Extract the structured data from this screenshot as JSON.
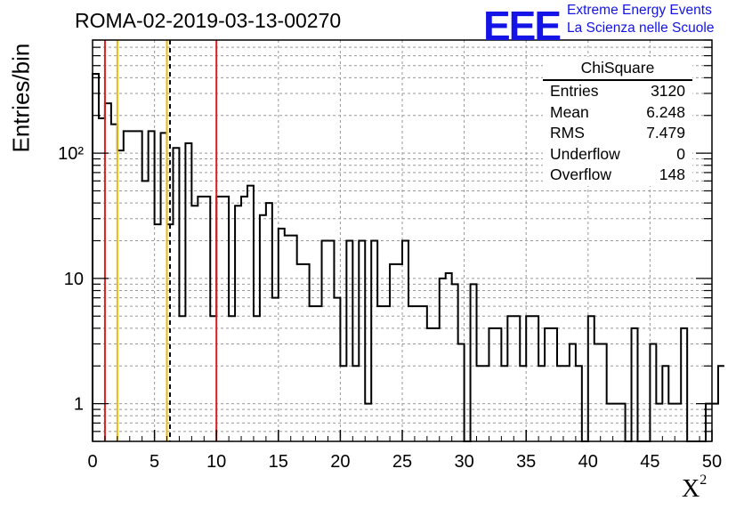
{
  "header": {
    "title": "ROMA-02-2019-03-13-00270",
    "logo_text": "EEE",
    "logo_line1": "Extreme Energy Events",
    "logo_line2": "La Scienza nelle Scuole"
  },
  "stats": {
    "title": "ChiSquare",
    "rows": [
      {
        "key": "Entries",
        "value": "3120"
      },
      {
        "key": "Mean",
        "value": "6.248"
      },
      {
        "key": "RMS",
        "value": "7.479"
      },
      {
        "key": "Underflow",
        "value": "0"
      },
      {
        "key": "Overflow",
        "value": "148"
      }
    ]
  },
  "chart_data": {
    "type": "histogram",
    "title": "ROMA-02-2019-03-13-00270",
    "xlabel": "χ²",
    "ylabel": "Entries/bin",
    "xlim": [
      0,
      50
    ],
    "ylim": [
      0.5,
      800
    ],
    "yscale": "log",
    "grid": true,
    "bin_width": 0.5,
    "x_ticks": [
      0,
      5,
      10,
      15,
      20,
      25,
      30,
      35,
      40,
      45,
      50
    ],
    "x_tick_labels": [
      "0",
      "5",
      "10",
      "15",
      "20",
      "25",
      "30",
      "35",
      "40",
      "45",
      "50"
    ],
    "y_ticks": [
      1,
      10,
      100
    ],
    "y_tick_labels": [
      "1",
      "10",
      "10²"
    ],
    "bin_values": [
      430,
      190,
      250,
      170,
      105,
      150,
      150,
      150,
      60,
      150,
      27,
      145,
      27,
      110,
      5,
      120,
      38,
      45,
      45,
      5,
      45,
      45,
      5,
      38,
      45,
      55,
      5,
      32,
      40,
      7,
      25,
      22,
      22,
      13,
      13,
      6,
      6,
      20,
      20,
      7,
      2,
      20,
      2,
      20,
      1,
      20,
      6,
      6,
      13,
      13,
      20,
      6,
      6,
      6,
      4,
      4,
      10,
      11,
      9,
      3,
      0,
      9,
      2,
      2,
      4,
      4,
      2,
      5,
      5,
      2,
      5,
      5,
      2,
      4,
      4,
      2,
      2,
      3,
      2,
      0,
      5,
      3,
      3,
      1,
      1,
      1,
      0,
      4,
      0,
      0,
      3,
      1,
      2,
      1,
      1,
      4,
      0,
      0,
      0,
      1,
      1,
      2
    ],
    "vertical_lines": [
      {
        "x": 1,
        "color": "#e31a1c",
        "style": "solid"
      },
      {
        "x": 2,
        "color": "#f2b705",
        "style": "solid"
      },
      {
        "x": 6,
        "color": "#f2b705",
        "style": "solid"
      },
      {
        "x": 6.248,
        "color": "#000000",
        "style": "dashed"
      },
      {
        "x": 10,
        "color": "#e31a1c",
        "style": "solid"
      }
    ],
    "colors": {
      "histogram": "#000000",
      "grid": "#999999",
      "logo": "#1414e6"
    }
  }
}
